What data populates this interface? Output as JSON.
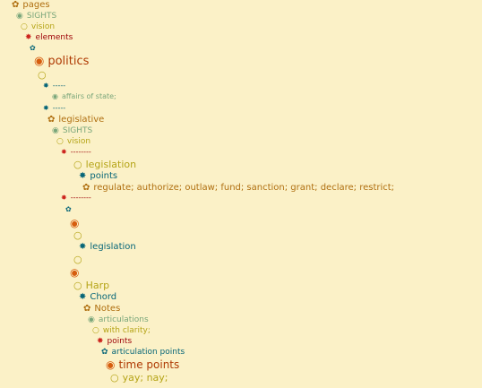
{
  "tree": {
    "nodes": [
      {
        "sym": "✿",
        "label": "pages"
      },
      {
        "sym": "◉",
        "label": "SIGHTS"
      },
      {
        "sym": "○",
        "label": "vision"
      },
      {
        "sym": "✸",
        "label": "elements"
      },
      {
        "sym": "✿",
        "label": ""
      },
      {
        "sym": "◉",
        "label": "politics"
      },
      {
        "sym": "○",
        "label": ""
      },
      {
        "sym": "✸",
        "label": "-----"
      },
      {
        "sym": "◉",
        "label": "affairs of state;"
      },
      {
        "sym": "✸",
        "label": "-----"
      },
      {
        "sym": "✿",
        "label": "legislative"
      },
      {
        "sym": "◉",
        "label": "SIGHTS"
      },
      {
        "sym": "○",
        "label": "vision"
      },
      {
        "sym": "✸",
        "label": "--------"
      },
      {
        "sym": "○",
        "label": "legislation"
      },
      {
        "sym": "✸",
        "label": "points"
      },
      {
        "sym": "✿",
        "label": "regulate; authorize; outlaw; fund; sanction; grant; declare; restrict;"
      },
      {
        "sym": "✸",
        "label": "--------"
      },
      {
        "sym": "✿",
        "label": ""
      },
      {
        "sym": "◉",
        "label": ""
      },
      {
        "sym": "○",
        "label": ""
      },
      {
        "sym": "✸",
        "label": "legislation"
      },
      {
        "sym": "○",
        "label": ""
      },
      {
        "sym": "◉",
        "label": ""
      },
      {
        "sym": "○",
        "label": "Harp"
      },
      {
        "sym": "✸",
        "label": "Chord"
      },
      {
        "sym": "✿",
        "label": "Notes"
      },
      {
        "sym": "◉",
        "label": "articulations"
      },
      {
        "sym": "○",
        "label": "with clarity;"
      },
      {
        "sym": "✸",
        "label": "points"
      },
      {
        "sym": "✿",
        "label": "articulation points"
      },
      {
        "sym": "◉",
        "label": "time points"
      },
      {
        "sym": "○",
        "label": "yay; nay;"
      }
    ]
  }
}
